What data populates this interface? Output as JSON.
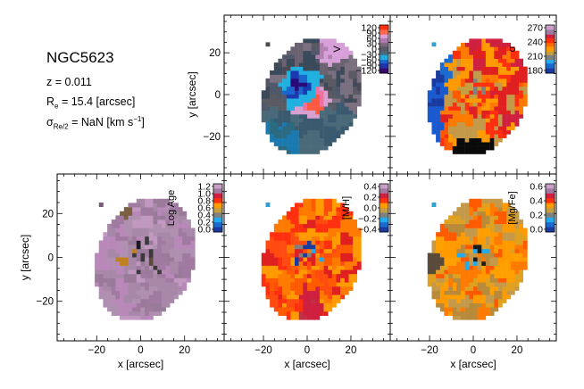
{
  "galaxy": {
    "name": "NGC5623",
    "redshift": "z = 0.011",
    "re_prefix": "R",
    "re_sub": "e",
    "re_value": " = 15.4 [arcsec]",
    "sigma_prefix": "σ",
    "sigma_sub": "Re/2",
    "sigma_value": " = NaN [km s",
    "sigma_sup": "−1",
    "sigma_close": "]"
  },
  "colors": {
    "palette": [
      "#1a1a1a",
      "#3a3a3a",
      "#5a4a3a",
      "#4a4a4a",
      "#6a6a6a",
      "#405868",
      "#2c4f60",
      "#08a0c8",
      "#30b8e8",
      "#0a8ad0",
      "#1a4aa0",
      "#2230a0",
      "#c03048",
      "#e02020",
      "#ff3010",
      "#ff5a00",
      "#ff7a00",
      "#ffa000",
      "#c49a4a",
      "#b888a8",
      "#8a6a8a",
      "#d8a0d0",
      "#a07aa0",
      "#e8c8e0"
    ]
  },
  "chart_data": [
    {
      "id": "velocity",
      "type": "heatmap",
      "title": "",
      "xlabel": "",
      "ylabel": "y [arcsec]",
      "xlim": [
        -38,
        38
      ],
      "ylim": [
        -38,
        38
      ],
      "xticks": [],
      "yticks": [
        "20",
        "0",
        "−20"
      ],
      "colorbar_label": "V",
      "colorbar_range": [
        -120,
        120
      ],
      "colorbar_ticks": [
        "120",
        "90",
        "60",
        "30",
        "0",
        "−30",
        "−60",
        "−90",
        "−120"
      ],
      "colorbar_scheme": "velocity",
      "map_scheme": "velocity",
      "map_seed": 11,
      "coverage": {
        "cx": 1,
        "cy": -2,
        "rx": 22,
        "ry": 29,
        "tilt": -0.35
      },
      "note": "blue minimum near (-5, 4), pink-red maximum near (2, -4), slate-gray outskirts"
    },
    {
      "id": "sigma",
      "type": "heatmap",
      "title": "",
      "xlabel": "",
      "ylabel": "",
      "xlim": [
        -38,
        38
      ],
      "ylim": [
        -38,
        38
      ],
      "xticks": [],
      "yticks": [],
      "colorbar_label": "σ",
      "colorbar_range": [
        160,
        290
      ],
      "colorbar_ticks": [
        "270",
        "240",
        "210",
        "180"
      ],
      "colorbar_scheme": "sigma",
      "map_scheme": "sigma",
      "map_seed": 23,
      "coverage": {
        "cx": 1,
        "cy": -2,
        "rx": 22,
        "ry": 29,
        "tilt": -0.35
      },
      "note": "blue western edge, red-orange interior, black patch at the southern edge"
    },
    {
      "id": "log_age",
      "type": "heatmap",
      "title": "",
      "xlabel": "x [arcsec]",
      "ylabel": "y [arcsec]",
      "xlim": [
        -38,
        38
      ],
      "ylim": [
        -38,
        38
      ],
      "xticks": [
        "−20",
        "0",
        "20"
      ],
      "yticks": [
        "20",
        "0",
        "−20"
      ],
      "colorbar_label": "Log Age",
      "colorbar_range": [
        0.0,
        1.25
      ],
      "colorbar_ticks": [
        "1.2",
        "1.0",
        "0.8",
        "0.6",
        "0.4",
        "0.2",
        "0.0"
      ],
      "colorbar_scheme": "age",
      "map_scheme": "age",
      "map_seed": 37,
      "coverage": {
        "cx": 1,
        "cy": -2,
        "rx": 22,
        "ry": 29,
        "tilt": -0.35
      },
      "note": "almost uniformly old (lavender), dark patches near the centre"
    },
    {
      "id": "metallicity",
      "type": "heatmap",
      "title": "",
      "xlabel": "x [arcsec]",
      "ylabel": "",
      "xlim": [
        -38,
        38
      ],
      "ylim": [
        -38,
        38
      ],
      "xticks": [
        "−20",
        "0",
        "20"
      ],
      "yticks": [],
      "colorbar_label": "[M/H]",
      "colorbar_range": [
        -0.45,
        0.45
      ],
      "colorbar_ticks": [
        "0.4",
        "0.2",
        "0.0",
        "−0.2",
        "−0.4"
      ],
      "colorbar_scheme": "metal",
      "map_scheme": "metal",
      "map_seed": 53,
      "coverage": {
        "cx": 1,
        "cy": -2,
        "rx": 22,
        "ry": 29,
        "tilt": -0.35
      },
      "note": "mostly red-orange (metal rich) with a few dark patches at the western edge"
    },
    {
      "id": "alpha_fe",
      "type": "heatmap",
      "title": "",
      "xlabel": "x [arcsec]",
      "ylabel": "",
      "xlim": [
        -38,
        38
      ],
      "ylim": [
        -38,
        38
      ],
      "xticks": [
        "−20",
        "0",
        "20"
      ],
      "yticks": [],
      "colorbar_label": "[Mg/Fe]",
      "colorbar_range": [
        -0.05,
        0.65
      ],
      "colorbar_ticks": [
        "0.6",
        "0.4",
        "0.2",
        "0.0"
      ],
      "colorbar_scheme": "alpha",
      "map_scheme": "alpha",
      "map_seed": 71,
      "coverage": {
        "cx": 1,
        "cy": -2,
        "rx": 22,
        "ry": 29,
        "tilt": -0.35
      },
      "note": "orange-gold dominated, a light-blue patch at the western edge"
    }
  ]
}
